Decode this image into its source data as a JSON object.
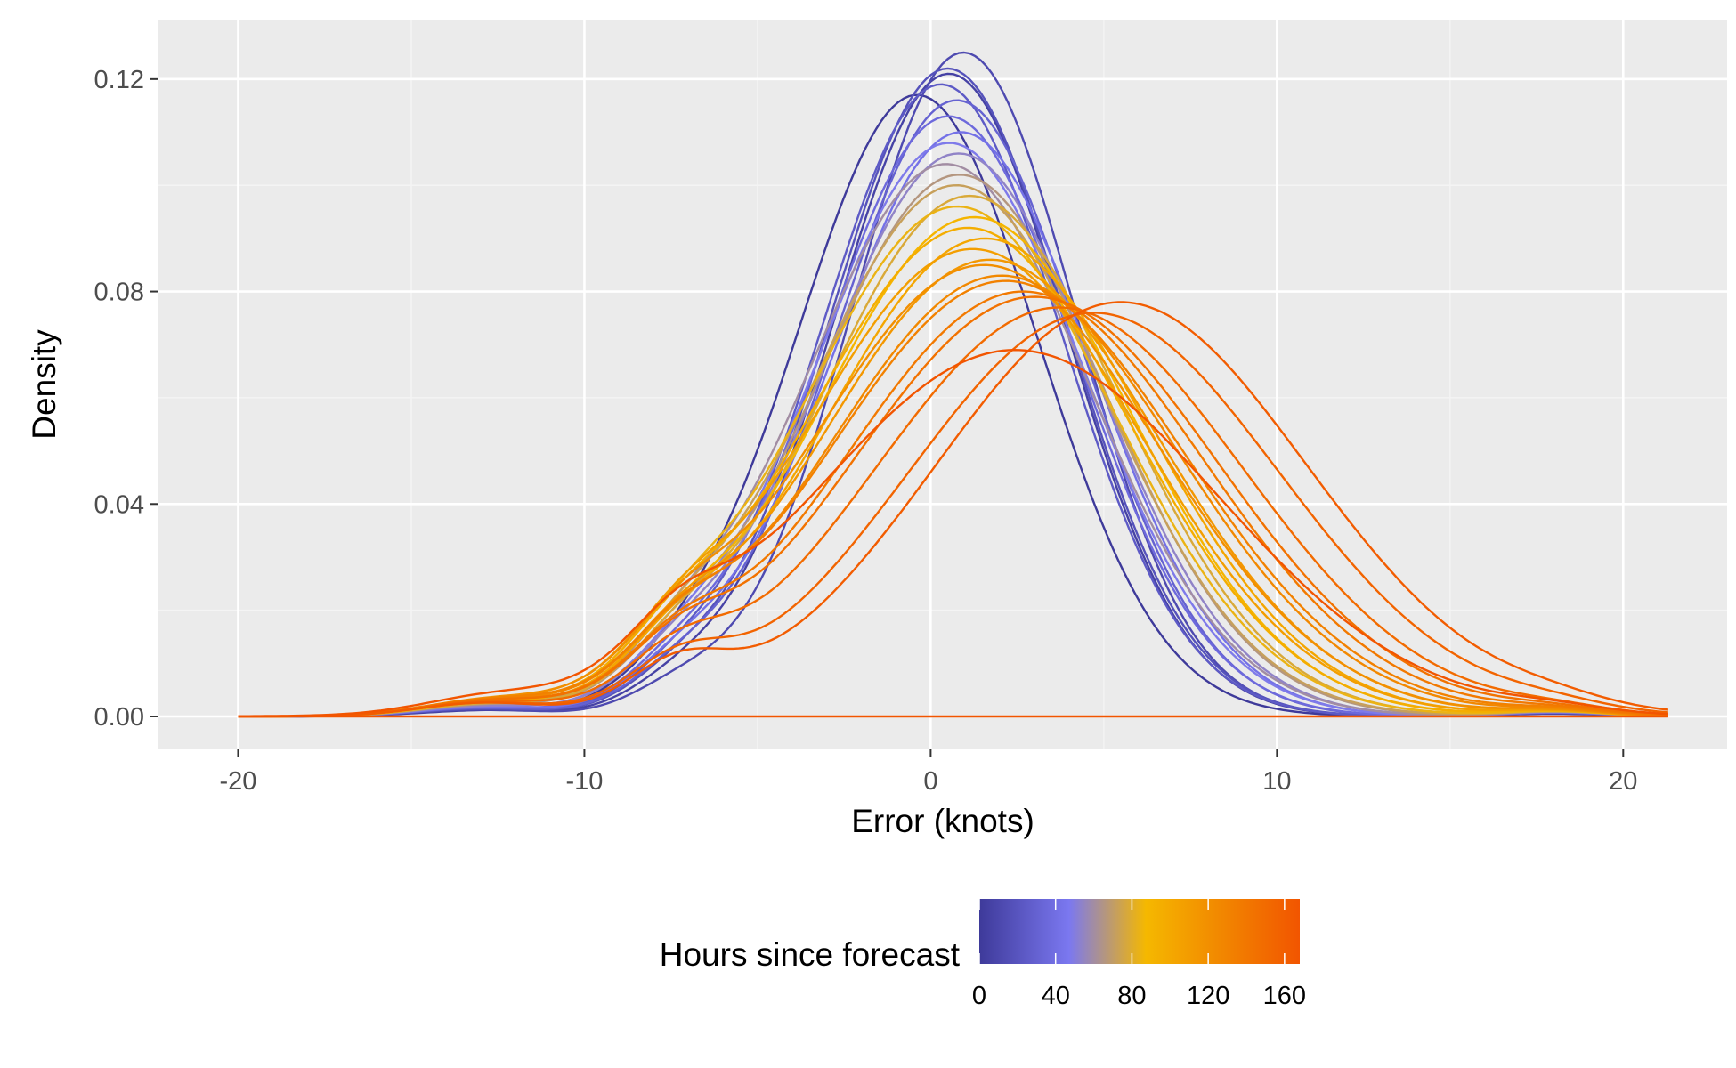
{
  "chart_data": {
    "type": "line",
    "title": "",
    "xlabel": "Error (knots)",
    "ylabel": "Density",
    "xlim": [
      -22.3,
      23
    ],
    "ylim": [
      -0.0062,
      0.1312
    ],
    "x_ticks": [
      -20,
      -10,
      0,
      10,
      20
    ],
    "x_tick_labels": [
      "-20",
      "-10",
      "0",
      "10",
      "20"
    ],
    "y_ticks": [
      0.0,
      0.04,
      0.08,
      0.12
    ],
    "y_tick_labels": [
      "0.00",
      "0.04",
      "0.08",
      "0.12"
    ],
    "grid": true,
    "panel_background": "#EBEBEB",
    "legend": {
      "title": "Hours since forecast",
      "position": "bottom",
      "type": "colorbar",
      "range": [
        0,
        168
      ],
      "ticks": [
        0,
        40,
        80,
        120,
        160
      ],
      "tick_labels": [
        "0",
        "40",
        "80",
        "120",
        "160"
      ],
      "colors": [
        "#3E3A9A",
        "#7B78F0",
        "#F5B800",
        "#F28A00",
        "#F25500"
      ],
      "color_stops": [
        0,
        0.28,
        0.52,
        0.74,
        1
      ]
    },
    "series_color_by": "Hours since forecast",
    "series": [
      {
        "hours": 0,
        "mean": -0.4,
        "sd": 3.5,
        "skew": 0.0,
        "peak": 0.117
      },
      {
        "hours": 6,
        "mean": 0.1,
        "sd": 3.4,
        "skew": 0.15,
        "peak": 0.121
      },
      {
        "hours": 12,
        "mean": 0.4,
        "sd": 3.3,
        "skew": 0.2,
        "peak": 0.125
      },
      {
        "hours": 18,
        "mean": 0.2,
        "sd": 3.45,
        "skew": 0.1,
        "peak": 0.122
      },
      {
        "hours": 24,
        "mean": 0.0,
        "sd": 3.5,
        "skew": 0.1,
        "peak": 0.119
      },
      {
        "hours": 30,
        "mean": 0.3,
        "sd": 3.6,
        "skew": 0.15,
        "peak": 0.116
      },
      {
        "hours": 36,
        "mean": 0.2,
        "sd": 3.7,
        "skew": 0.1,
        "peak": 0.113
      },
      {
        "hours": 42,
        "mean": 0.4,
        "sd": 3.8,
        "skew": 0.15,
        "peak": 0.11
      },
      {
        "hours": 48,
        "mean": 0.2,
        "sd": 3.9,
        "skew": 0.1,
        "peak": 0.108
      },
      {
        "hours": 54,
        "mean": 0.3,
        "sd": 4.0,
        "skew": 0.15,
        "peak": 0.106
      },
      {
        "hours": 60,
        "mean": 0.1,
        "sd": 4.1,
        "skew": 0.1,
        "peak": 0.104
      },
      {
        "hours": 66,
        "mean": 0.3,
        "sd": 4.2,
        "skew": 0.15,
        "peak": 0.102
      },
      {
        "hours": 72,
        "mean": 0.2,
        "sd": 4.3,
        "skew": 0.15,
        "peak": 0.1
      },
      {
        "hours": 78,
        "mean": 0.4,
        "sd": 4.4,
        "skew": 0.2,
        "peak": 0.098
      },
      {
        "hours": 84,
        "mean": 0.2,
        "sd": 4.5,
        "skew": 0.15,
        "peak": 0.096
      },
      {
        "hours": 90,
        "mean": 0.5,
        "sd": 4.6,
        "skew": 0.2,
        "peak": 0.094
      },
      {
        "hours": 96,
        "mean": 0.3,
        "sd": 4.7,
        "skew": 0.2,
        "peak": 0.092
      },
      {
        "hours": 102,
        "mean": 0.6,
        "sd": 4.8,
        "skew": 0.25,
        "peak": 0.09
      },
      {
        "hours": 108,
        "mean": 0.4,
        "sd": 4.9,
        "skew": 0.2,
        "peak": 0.088
      },
      {
        "hours": 114,
        "mean": 0.7,
        "sd": 5.0,
        "skew": 0.25,
        "peak": 0.086
      },
      {
        "hours": 120,
        "mean": 0.5,
        "sd": 5.1,
        "skew": 0.25,
        "peak": 0.085
      },
      {
        "hours": 126,
        "mean": 0.8,
        "sd": 5.2,
        "skew": 0.3,
        "peak": 0.083
      },
      {
        "hours": 132,
        "mean": 0.9,
        "sd": 5.3,
        "skew": 0.3,
        "peak": 0.082
      },
      {
        "hours": 138,
        "mean": 1.2,
        "sd": 5.4,
        "skew": 0.35,
        "peak": 0.08
      },
      {
        "hours": 144,
        "mean": 1.5,
        "sd": 5.5,
        "skew": 0.35,
        "peak": 0.079
      },
      {
        "hours": 150,
        "mean": 2.0,
        "sd": 5.6,
        "skew": 0.4,
        "peak": 0.077
      },
      {
        "hours": 156,
        "mean": 2.8,
        "sd": 5.7,
        "skew": 0.45,
        "peak": 0.076
      },
      {
        "hours": 162,
        "mean": 3.4,
        "sd": 5.8,
        "skew": 0.5,
        "peak": 0.078
      },
      {
        "hours": 168,
        "mean": 1.0,
        "sd": 6.0,
        "skew": 0.3,
        "peak": 0.069
      }
    ]
  }
}
